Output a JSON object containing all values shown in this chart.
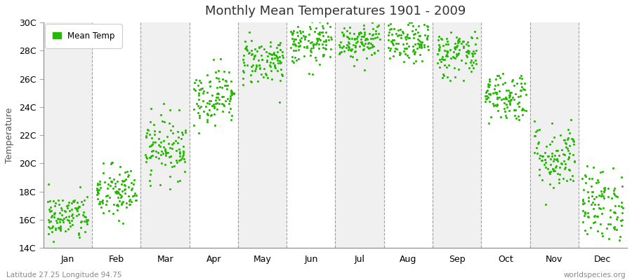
{
  "title": "Monthly Mean Temperatures 1901 - 2009",
  "ylabel": "Temperature",
  "subtitle": "Latitude 27.25 Longitude 94.75",
  "watermark": "worldspecies.org",
  "legend_label": "Mean Temp",
  "marker_color": "#22bb00",
  "figure_bg_color": "#ffffff",
  "plot_bg_color": "#f0f0f0",
  "plot_alt_color": "#ffffff",
  "dashed_line_color": "#888888",
  "ylim": [
    14,
    30
  ],
  "yticks": [
    14,
    16,
    18,
    20,
    22,
    24,
    26,
    28,
    30
  ],
  "ytick_labels": [
    "14C",
    "16C",
    "18C",
    "20C",
    "22C",
    "24C",
    "26C",
    "28C",
    "30C"
  ],
  "months": [
    "Jan",
    "Feb",
    "Mar",
    "Apr",
    "May",
    "Jun",
    "Jul",
    "Aug",
    "Sep",
    "Oct",
    "Nov",
    "Dec"
  ],
  "month_mean_temps": [
    16.2,
    17.9,
    21.2,
    24.8,
    27.3,
    28.5,
    28.8,
    28.6,
    27.8,
    24.8,
    20.5,
    17.1
  ],
  "month_std_temps": [
    0.85,
    1.0,
    1.1,
    1.0,
    0.85,
    0.75,
    0.75,
    0.75,
    0.85,
    0.9,
    1.2,
    1.3
  ],
  "years": 109,
  "random_seed": 42,
  "marker_size": 5
}
